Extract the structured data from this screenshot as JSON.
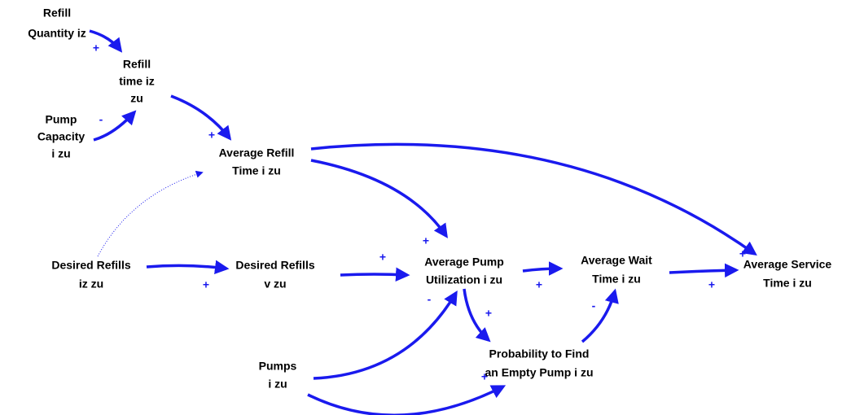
{
  "nodes": [
    {
      "lines": [
        "Refill",
        "Quantity iz"
      ]
    },
    {
      "lines": [
        "Refill",
        "time iz",
        "zu"
      ]
    },
    {
      "lines": [
        "Pump",
        "Capacity",
        "i zu"
      ]
    },
    {
      "lines": [
        "Average Refill",
        "Time i zu"
      ]
    },
    {
      "lines": [
        "Desired Refills",
        "iz zu"
      ]
    },
    {
      "lines": [
        "Desired Refills",
        "v zu"
      ]
    },
    {
      "lines": [
        "Average Pump",
        "Utilization i zu"
      ]
    },
    {
      "lines": [
        "Average Wait",
        "Time i zu"
      ]
    },
    {
      "lines": [
        "Average Service",
        "Time i zu"
      ]
    },
    {
      "lines": [
        "Pumps",
        "i zu"
      ]
    },
    {
      "lines": [
        "Probability to Find",
        "an Empty Pump i zu"
      ]
    }
  ],
  "links": [
    {
      "sign": "+"
    },
    {
      "sign": "-"
    },
    {
      "sign": "+"
    },
    {
      "sign": "+"
    },
    {
      "sign": "+"
    },
    {
      "sign": "+"
    },
    {
      "sign": "+"
    },
    {
      "sign": "+"
    },
    {
      "sign": "+"
    },
    {
      "sign": "-"
    },
    {
      "sign": "+"
    },
    {
      "sign": "-"
    },
    {
      "sign": "+"
    }
  ]
}
